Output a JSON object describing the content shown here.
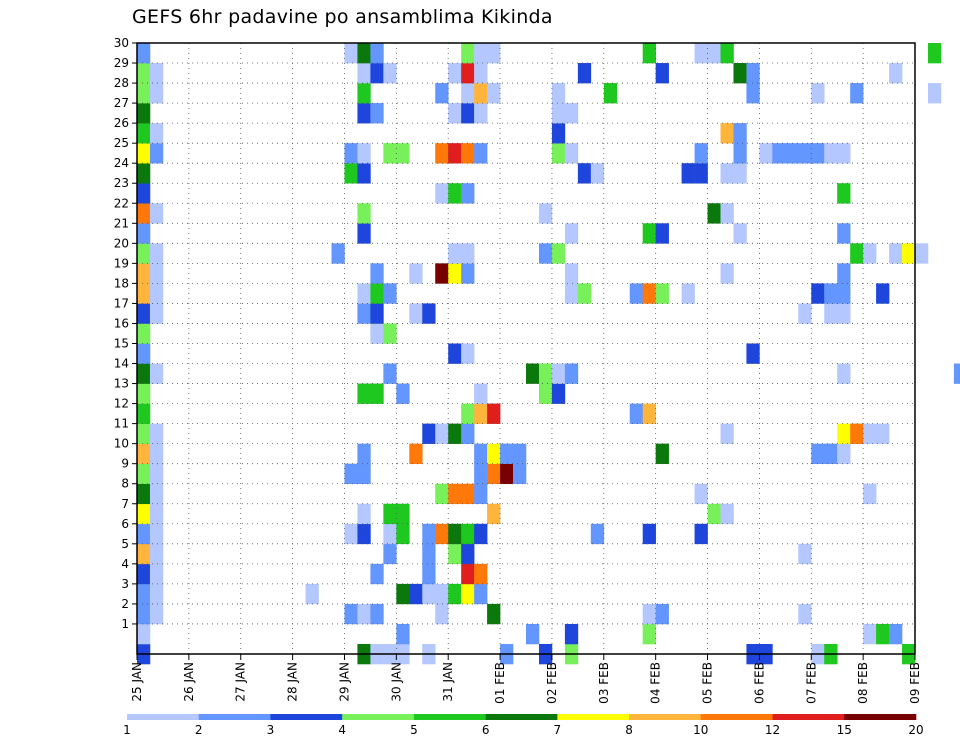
{
  "chart_data": {
    "type": "heatmap",
    "title": "GEFS 6hr padavine po ansamblima Kikinda",
    "xlabel": "",
    "ylabel": "",
    "grid": true,
    "x_start": "2024-01-25T00",
    "x_end": "2024-02-09T00",
    "x_step_hours": 6,
    "x_ticks": [
      "25 JAN",
      "26 JAN",
      "27 JAN",
      "28 JAN",
      "29 JAN",
      "30 JAN",
      "31 JAN",
      "01 FEB",
      "02 FEB",
      "03 FEB",
      "04 FEB",
      "05 FEB",
      "06 FEB",
      "07 FEB",
      "08 FEB",
      "09 FEB"
    ],
    "y_ticks": [
      "1",
      "2",
      "3",
      "4",
      "5",
      "6",
      "7",
      "8",
      "9",
      "10",
      "11",
      "12",
      "13",
      "14",
      "15",
      "16",
      "17",
      "18",
      "19",
      "20",
      "21",
      "22",
      "23",
      "24",
      "25",
      "26",
      "27",
      "28",
      "29",
      "30"
    ],
    "ylim": [
      0,
      30
    ],
    "colorbar": {
      "levels": [
        "1",
        "2",
        "3",
        "4",
        "5",
        "6",
        "7",
        "8",
        "10",
        "12",
        "15",
        "20"
      ],
      "colors": [
        "#b4c8ff",
        "#6496ff",
        "#1e46dc",
        "#78f05a",
        "#1ec81e",
        "#0a780a",
        "#ffff00",
        "#ffb43c",
        "#ff780a",
        "#e11e1e",
        "#780000"
      ]
    },
    "cells": [
      [
        "2024-01-25T00",
        0,
        2
      ],
      [
        "2024-01-29T06",
        0,
        5
      ],
      [
        "2024-01-29T12",
        0,
        0
      ],
      [
        "2024-01-29T18",
        0,
        0
      ],
      [
        "2024-01-30T00",
        0,
        0
      ],
      [
        "2024-01-30T12",
        0,
        0
      ],
      [
        "2024-02-01T00",
        0,
        1
      ],
      [
        "2024-02-01T18",
        0,
        2
      ],
      [
        "2024-02-02T06",
        0,
        3
      ],
      [
        "2024-02-05T18",
        0,
        2
      ],
      [
        "2024-02-06T00",
        0,
        2
      ],
      [
        "2024-02-07T00",
        0,
        0
      ],
      [
        "2024-02-07T06",
        0,
        4
      ],
      [
        "2024-02-08T18",
        0,
        4
      ],
      [
        "2024-01-25T00",
        1,
        0
      ],
      [
        "2024-01-30T00",
        1,
        1
      ],
      [
        "2024-02-01T12",
        1,
        1
      ],
      [
        "2024-02-02T06",
        1,
        2
      ],
      [
        "2024-02-03T18",
        1,
        3
      ],
      [
        "2024-02-08T00",
        1,
        0
      ],
      [
        "2024-02-08T06",
        1,
        4
      ],
      [
        "2024-02-08T12",
        1,
        1
      ],
      [
        "2024-01-25T00",
        2,
        1
      ],
      [
        "2024-01-25T06",
        2,
        0
      ],
      [
        "2024-01-29T00",
        2,
        1
      ],
      [
        "2024-01-29T06",
        2,
        0
      ],
      [
        "2024-01-29T12",
        2,
        1
      ],
      [
        "2024-01-30T18",
        2,
        0
      ],
      [
        "2024-01-31T18",
        2,
        5
      ],
      [
        "2024-02-03T18",
        2,
        0
      ],
      [
        "2024-02-04T00",
        2,
        1
      ],
      [
        "2024-02-06T18",
        2,
        0
      ],
      [
        "2024-01-25T00",
        3,
        1
      ],
      [
        "2024-01-25T06",
        3,
        0
      ],
      [
        "2024-01-28T06",
        3,
        0
      ],
      [
        "2024-01-30T00",
        3,
        5
      ],
      [
        "2024-01-30T06",
        3,
        2
      ],
      [
        "2024-01-30T12",
        3,
        0
      ],
      [
        "2024-01-30T18",
        3,
        0
      ],
      [
        "2024-01-31T00",
        3,
        4
      ],
      [
        "2024-01-31T06",
        3,
        6
      ],
      [
        "2024-01-31T12",
        3,
        1
      ],
      [
        "2024-01-25T00",
        4,
        2
      ],
      [
        "2024-01-25T06",
        4,
        0
      ],
      [
        "2024-01-29T12",
        4,
        1
      ],
      [
        "2024-01-30T12",
        4,
        1
      ],
      [
        "2024-01-31T06",
        4,
        9
      ],
      [
        "2024-01-31T12",
        4,
        8
      ],
      [
        "2024-01-25T00",
        5,
        7
      ],
      [
        "2024-01-25T06",
        5,
        0
      ],
      [
        "2024-01-29T18",
        5,
        1
      ],
      [
        "2024-01-30T12",
        5,
        1
      ],
      [
        "2024-01-31T00",
        5,
        3
      ],
      [
        "2024-01-31T06",
        5,
        2
      ],
      [
        "2024-02-06T18",
        5,
        0
      ],
      [
        "2024-01-25T00",
        6,
        1
      ],
      [
        "2024-01-25T06",
        6,
        0
      ],
      [
        "2024-01-29T00",
        6,
        0
      ],
      [
        "2024-01-29T06",
        6,
        2
      ],
      [
        "2024-01-29T18",
        6,
        0
      ],
      [
        "2024-01-30T00",
        6,
        4
      ],
      [
        "2024-01-30T12",
        6,
        1
      ],
      [
        "2024-01-30T18",
        6,
        8
      ],
      [
        "2024-01-31T00",
        6,
        5
      ],
      [
        "2024-01-31T06",
        6,
        4
      ],
      [
        "2024-01-31T12",
        6,
        2
      ],
      [
        "2024-02-02T18",
        6,
        1
      ],
      [
        "2024-02-03T18",
        6,
        2
      ],
      [
        "2024-02-04T18",
        6,
        2
      ],
      [
        "2024-01-25T00",
        7,
        6
      ],
      [
        "2024-01-25T06",
        7,
        0
      ],
      [
        "2024-01-29T06",
        7,
        0
      ],
      [
        "2024-01-29T18",
        7,
        4
      ],
      [
        "2024-01-30T00",
        7,
        4
      ],
      [
        "2024-01-31T18",
        7,
        7
      ],
      [
        "2024-02-05T00",
        7,
        3
      ],
      [
        "2024-02-05T06",
        7,
        0
      ],
      [
        "2024-01-25T00",
        8,
        5
      ],
      [
        "2024-01-25T06",
        8,
        0
      ],
      [
        "2024-01-30T18",
        8,
        3
      ],
      [
        "2024-01-31T00",
        8,
        8
      ],
      [
        "2024-01-31T06",
        8,
        8
      ],
      [
        "2024-01-31T12",
        8,
        1
      ],
      [
        "2024-02-04T18",
        8,
        0
      ],
      [
        "2024-02-08T00",
        8,
        0
      ],
      [
        "2024-01-25T00",
        9,
        3
      ],
      [
        "2024-01-25T06",
        9,
        0
      ],
      [
        "2024-01-29T00",
        9,
        1
      ],
      [
        "2024-01-29T06",
        9,
        1
      ],
      [
        "2024-01-31T12",
        9,
        1
      ],
      [
        "2024-01-31T18",
        9,
        8
      ],
      [
        "2024-02-01T00",
        9,
        10
      ],
      [
        "2024-02-01T06",
        9,
        1
      ],
      [
        "2024-01-25T00",
        10,
        7
      ],
      [
        "2024-01-25T06",
        10,
        0
      ],
      [
        "2024-01-29T06",
        10,
        1
      ],
      [
        "2024-01-30T06",
        10,
        8
      ],
      [
        "2024-01-31T12",
        10,
        1
      ],
      [
        "2024-01-31T18",
        10,
        6
      ],
      [
        "2024-02-01T00",
        10,
        1
      ],
      [
        "2024-02-01T06",
        10,
        1
      ],
      [
        "2024-02-04T00",
        10,
        5
      ],
      [
        "2024-02-07T00",
        10,
        1
      ],
      [
        "2024-02-07T06",
        10,
        1
      ],
      [
        "2024-02-07T12",
        10,
        0
      ],
      [
        "2024-01-25T00",
        11,
        3
      ],
      [
        "2024-01-25T06",
        11,
        0
      ],
      [
        "2024-01-30T12",
        11,
        2
      ],
      [
        "2024-01-30T18",
        11,
        0
      ],
      [
        "2024-01-31T00",
        11,
        5
      ],
      [
        "2024-01-31T06",
        11,
        1
      ],
      [
        "2024-02-05T06",
        11,
        0
      ],
      [
        "2024-02-07T12",
        11,
        6
      ],
      [
        "2024-02-07T18",
        11,
        8
      ],
      [
        "2024-02-08T00",
        11,
        0
      ],
      [
        "2024-02-08T06",
        11,
        0
      ],
      [
        "2024-01-25T00",
        12,
        4
      ],
      [
        "2024-01-31T06",
        12,
        3
      ],
      [
        "2024-01-31T12",
        12,
        7
      ],
      [
        "2024-01-31T18",
        12,
        9
      ],
      [
        "2024-02-03T12",
        12,
        1
      ],
      [
        "2024-02-03T18",
        12,
        7
      ],
      [
        "2024-01-25T00",
        13,
        3
      ],
      [
        "2024-01-29T06",
        13,
        4
      ],
      [
        "2024-01-29T12",
        13,
        4
      ],
      [
        "2024-01-30T00",
        13,
        1
      ],
      [
        "2024-01-31T12",
        13,
        0
      ],
      [
        "2024-02-01T18",
        13,
        3
      ],
      [
        "2024-02-02T00",
        13,
        2
      ],
      [
        "2024-01-25T00",
        14,
        5
      ],
      [
        "2024-01-25T06",
        14,
        0
      ],
      [
        "2024-01-29T18",
        14,
        1
      ],
      [
        "2024-02-01T12",
        14,
        5
      ],
      [
        "2024-02-01T18",
        14,
        3
      ],
      [
        "2024-02-02T00",
        14,
        0
      ],
      [
        "2024-02-02T06",
        14,
        1
      ],
      [
        "2024-02-07T12",
        14,
        0
      ],
      [
        "2024-02-09T18",
        14,
        1
      ],
      [
        "2024-01-25T00",
        15,
        1
      ],
      [
        "2024-01-31T00",
        15,
        2
      ],
      [
        "2024-01-31T06",
        15,
        0
      ],
      [
        "2024-02-05T18",
        15,
        2
      ],
      [
        "2024-01-25T00",
        16,
        3
      ],
      [
        "2024-01-29T12",
        16,
        0
      ],
      [
        "2024-01-29T18",
        16,
        3
      ],
      [
        "2024-01-25T00",
        17,
        2
      ],
      [
        "2024-01-25T06",
        17,
        0
      ],
      [
        "2024-01-29T06",
        17,
        1
      ],
      [
        "2024-01-29T12",
        17,
        2
      ],
      [
        "2024-01-30T06",
        17,
        0
      ],
      [
        "2024-01-30T12",
        17,
        2
      ],
      [
        "2024-02-06T18",
        17,
        0
      ],
      [
        "2024-02-07T06",
        17,
        0
      ],
      [
        "2024-02-07T12",
        17,
        0
      ],
      [
        "2024-01-25T00",
        18,
        7
      ],
      [
        "2024-01-25T06",
        18,
        0
      ],
      [
        "2024-01-29T06",
        18,
        0
      ],
      [
        "2024-01-29T12",
        18,
        4
      ],
      [
        "2024-01-29T18",
        18,
        1
      ],
      [
        "2024-02-02T06",
        18,
        0
      ],
      [
        "2024-02-02T12",
        18,
        3
      ],
      [
        "2024-02-03T12",
        18,
        1
      ],
      [
        "2024-02-03T18",
        18,
        8
      ],
      [
        "2024-02-04T00",
        18,
        3
      ],
      [
        "2024-02-04T12",
        18,
        0
      ],
      [
        "2024-02-07T00",
        18,
        2
      ],
      [
        "2024-02-07T06",
        18,
        1
      ],
      [
        "2024-02-07T12",
        18,
        1
      ],
      [
        "2024-02-08T06",
        18,
        2
      ],
      [
        "2024-01-25T00",
        19,
        7
      ],
      [
        "2024-01-25T06",
        19,
        0
      ],
      [
        "2024-01-29T12",
        19,
        1
      ],
      [
        "2024-01-30T06",
        19,
        0
      ],
      [
        "2024-01-30T18",
        19,
        10
      ],
      [
        "2024-01-31T00",
        19,
        6
      ],
      [
        "2024-01-31T06",
        19,
        1
      ],
      [
        "2024-02-02T06",
        19,
        0
      ],
      [
        "2024-02-05T06",
        19,
        0
      ],
      [
        "2024-02-07T12",
        19,
        1
      ],
      [
        "2024-01-25T00",
        20,
        3
      ],
      [
        "2024-01-25T06",
        20,
        0
      ],
      [
        "2024-01-28T18",
        20,
        1
      ],
      [
        "2024-01-31T00",
        20,
        0
      ],
      [
        "2024-01-31T06",
        20,
        0
      ],
      [
        "2024-02-01T18",
        20,
        1
      ],
      [
        "2024-02-02T00",
        20,
        3
      ],
      [
        "2024-02-07T18",
        20,
        4
      ],
      [
        "2024-02-08T00",
        20,
        0
      ],
      [
        "2024-02-08T12",
        20,
        0
      ],
      [
        "2024-02-08T18",
        20,
        6
      ],
      [
        "2024-02-09T00",
        20,
        0
      ],
      [
        "2024-01-25T00",
        21,
        1
      ],
      [
        "2024-01-29T06",
        21,
        2
      ],
      [
        "2024-02-02T06",
        21,
        0
      ],
      [
        "2024-02-03T18",
        21,
        4
      ],
      [
        "2024-02-04T00",
        21,
        2
      ],
      [
        "2024-02-05T12",
        21,
        0
      ],
      [
        "2024-02-07T12",
        21,
        1
      ],
      [
        "2024-01-25T00",
        22,
        8
      ],
      [
        "2024-01-25T06",
        22,
        0
      ],
      [
        "2024-01-29T06",
        22,
        3
      ],
      [
        "2024-02-01T18",
        22,
        0
      ],
      [
        "2024-02-05T00",
        22,
        5
      ],
      [
        "2024-02-05T06",
        22,
        0
      ],
      [
        "2024-01-25T00",
        23,
        2
      ],
      [
        "2024-01-30T18",
        23,
        0
      ],
      [
        "2024-01-31T00",
        23,
        4
      ],
      [
        "2024-01-31T06",
        23,
        1
      ],
      [
        "2024-02-07T12",
        23,
        4
      ],
      [
        "2024-01-25T00",
        24,
        5
      ],
      [
        "2024-01-29T00",
        24,
        4
      ],
      [
        "2024-01-29T06",
        24,
        2
      ],
      [
        "2024-02-02T12",
        24,
        2
      ],
      [
        "2024-02-02T18",
        24,
        0
      ],
      [
        "2024-02-04T12",
        24,
        2
      ],
      [
        "2024-02-04T18",
        24,
        2
      ],
      [
        "2024-02-05T06",
        24,
        0
      ],
      [
        "2024-02-05T12",
        24,
        0
      ],
      [
        "2024-01-25T00",
        25,
        6
      ],
      [
        "2024-01-25T06",
        25,
        1
      ],
      [
        "2024-01-29T00",
        25,
        1
      ],
      [
        "2024-01-29T06",
        25,
        0
      ],
      [
        "2024-01-29T18",
        25,
        3
      ],
      [
        "2024-01-30T00",
        25,
        3
      ],
      [
        "2024-01-30T18",
        25,
        8
      ],
      [
        "2024-01-31T00",
        25,
        9
      ],
      [
        "2024-01-31T06",
        25,
        8
      ],
      [
        "2024-01-31T12",
        25,
        1
      ],
      [
        "2024-02-02T00",
        25,
        3
      ],
      [
        "2024-02-02T06",
        25,
        0
      ],
      [
        "2024-02-04T18",
        25,
        1
      ],
      [
        "2024-02-05T12",
        25,
        1
      ],
      [
        "2024-02-06T00",
        25,
        0
      ],
      [
        "2024-02-06T06",
        25,
        1
      ],
      [
        "2024-02-06T12",
        25,
        1
      ],
      [
        "2024-02-06T18",
        25,
        1
      ],
      [
        "2024-02-07T00",
        25,
        1
      ],
      [
        "2024-02-07T06",
        25,
        0
      ],
      [
        "2024-02-07T12",
        25,
        0
      ],
      [
        "2024-01-25T00",
        26,
        4
      ],
      [
        "2024-01-25T06",
        26,
        0
      ],
      [
        "2024-02-02T00",
        26,
        2
      ],
      [
        "2024-02-05T06",
        26,
        7
      ],
      [
        "2024-02-05T12",
        26,
        1
      ],
      [
        "2024-01-25T00",
        27,
        5
      ],
      [
        "2024-01-29T06",
        27,
        2
      ],
      [
        "2024-01-29T12",
        27,
        1
      ],
      [
        "2024-01-31T00",
        27,
        0
      ],
      [
        "2024-01-31T06",
        27,
        2
      ],
      [
        "2024-01-31T12",
        27,
        0
      ],
      [
        "2024-02-02T00",
        27,
        0
      ],
      [
        "2024-02-02T06",
        27,
        0
      ],
      [
        "2024-01-25T00",
        28,
        3
      ],
      [
        "2024-01-25T06",
        28,
        0
      ],
      [
        "2024-01-29T06",
        28,
        4
      ],
      [
        "2024-01-30T18",
        28,
        1
      ],
      [
        "2024-01-31T06",
        28,
        0
      ],
      [
        "2024-01-31T12",
        28,
        7
      ],
      [
        "2024-01-31T18",
        28,
        0
      ],
      [
        "2024-02-02T00",
        28,
        0
      ],
      [
        "2024-02-03T00",
        28,
        4
      ],
      [
        "2024-02-05T18",
        28,
        1
      ],
      [
        "2024-02-07T00",
        28,
        0
      ],
      [
        "2024-02-07T18",
        28,
        1
      ],
      [
        "2024-02-09T06",
        28,
        0
      ],
      [
        "2024-01-25T00",
        29,
        3
      ],
      [
        "2024-01-25T06",
        29,
        0
      ],
      [
        "2024-01-29T06",
        29,
        0
      ],
      [
        "2024-01-29T12",
        29,
        2
      ],
      [
        "2024-01-29T18",
        29,
        0
      ],
      [
        "2024-01-31T00",
        29,
        0
      ],
      [
        "2024-01-31T06",
        29,
        9
      ],
      [
        "2024-01-31T12",
        29,
        0
      ],
      [
        "2024-02-02T12",
        29,
        2
      ],
      [
        "2024-02-04T00",
        29,
        2
      ],
      [
        "2024-02-05T12",
        29,
        5
      ],
      [
        "2024-02-05T18",
        29,
        1
      ],
      [
        "2024-02-08T12",
        29,
        0
      ],
      [
        "2024-01-25T00",
        30,
        1
      ],
      [
        "2024-01-29T00",
        30,
        0
      ],
      [
        "2024-01-29T06",
        30,
        5
      ],
      [
        "2024-01-29T12",
        30,
        1
      ],
      [
        "2024-01-31T06",
        30,
        3
      ],
      [
        "2024-01-31T12",
        30,
        0
      ],
      [
        "2024-01-31T18",
        30,
        0
      ],
      [
        "2024-02-03T18",
        30,
        4
      ],
      [
        "2024-02-04T18",
        30,
        0
      ],
      [
        "2024-02-05T00",
        30,
        0
      ],
      [
        "2024-02-05T06",
        30,
        4
      ],
      [
        "2024-02-09T06",
        30,
        4
      ]
    ]
  }
}
